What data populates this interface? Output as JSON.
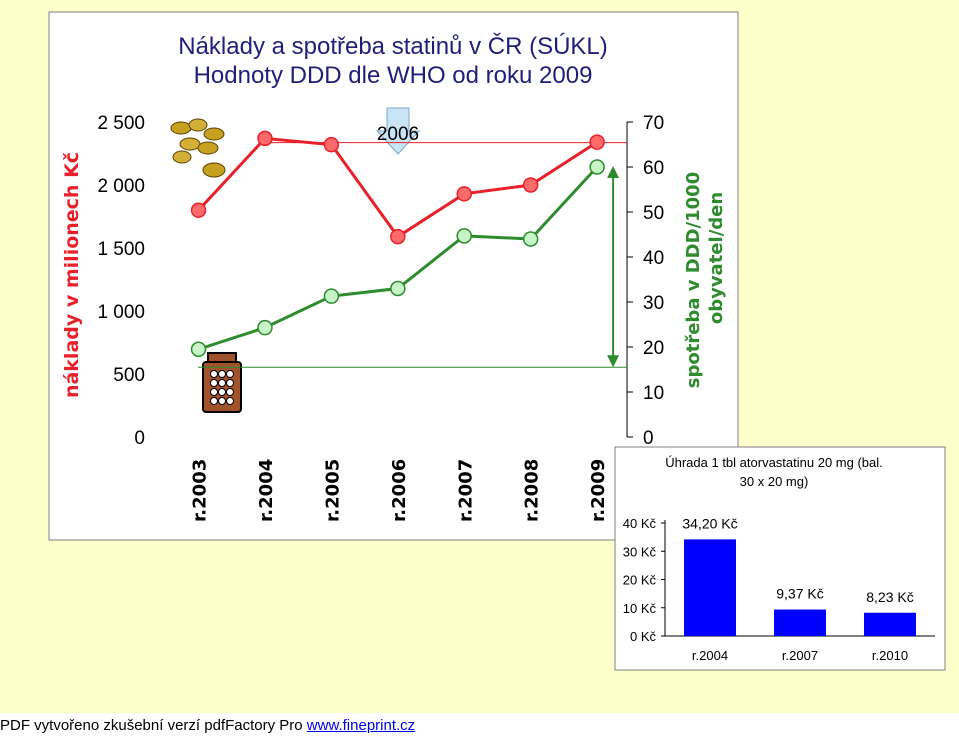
{
  "chart_data": [
    {
      "type": "line",
      "title": "Náklady a spotřeba statinů v ČR (SÚKL)",
      "subtitle": "Hodnoty DDD dle WHO od roku 2009",
      "categories": [
        "r.2003",
        "r.2004",
        "r.2005",
        "r.2006",
        "r.2007",
        "r.2008",
        "r.2009"
      ],
      "ylabel": "náklady v milionech Kč",
      "y2label_line1": "spotřeba v DDD/1000",
      "y2label_line2": "obyvatel/den",
      "ylim": [
        0,
        2500
      ],
      "y2lim": [
        0,
        70
      ],
      "yticks": [
        "0",
        "500",
        "1 000",
        "1 500",
        "2 000",
        "2 500"
      ],
      "y2ticks": [
        "0",
        "10",
        "20",
        "30",
        "40",
        "50",
        "60",
        "70"
      ],
      "annotation": "2006",
      "series": [
        {
          "axis": "left",
          "color": "#E8202A",
          "marker_fill": "#FF6B6B",
          "values": [
            1800,
            2370,
            2320,
            1590,
            1930,
            2000,
            2340
          ]
        },
        {
          "axis": "right",
          "color": "#2E8B2E",
          "marker_fill": "#C8F5C8",
          "values": [
            19.5,
            24.3,
            31.3,
            33.0,
            44.7,
            44.0,
            60.0
          ]
        }
      ],
      "colors": {
        "cost": "#E8202A",
        "consumption": "#2E8B2E",
        "title": "#1F1F7A"
      }
    },
    {
      "type": "bar",
      "title_line1": "Úhrada 1 tbl atorvastatinu 20 mg (bal.",
      "title_line2": "30 x 20 mg)",
      "categories": [
        "r.2004",
        "r.2007",
        "r.2010"
      ],
      "values": [
        34.2,
        9.37,
        8.23
      ],
      "value_labels": [
        "34,20 Kč",
        "9,37 Kč",
        "8,23 Kč"
      ],
      "ylim": [
        0,
        40
      ],
      "yticks": [
        "0 Kč",
        "10 Kč",
        "20 Kč",
        "30 Kč",
        "40 Kč"
      ],
      "color": "#0000FF"
    }
  ],
  "footer": {
    "text": "PDF vytvořeno zkušební verzí pdfFactory Pro ",
    "link": "www.fineprint.cz"
  }
}
